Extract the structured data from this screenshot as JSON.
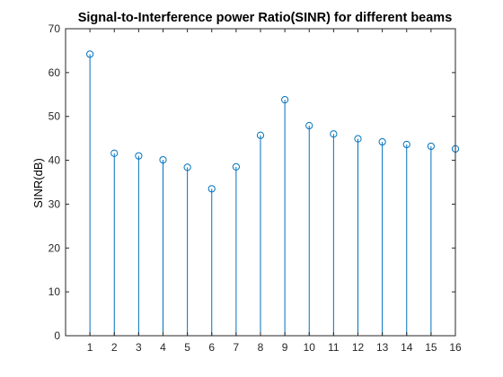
{
  "chart_data": {
    "type": "stem",
    "title": "Signal-to-Interference power Ratio(SINR) for different beams",
    "xlabel": "",
    "ylabel": "SINR(dB)",
    "x": [
      1,
      2,
      3,
      4,
      5,
      6,
      7,
      8,
      9,
      10,
      11,
      12,
      13,
      14,
      15,
      16
    ],
    "values": [
      64.2,
      41.6,
      41.0,
      40.1,
      38.4,
      33.5,
      38.5,
      45.7,
      53.8,
      47.9,
      46.0,
      44.9,
      44.2,
      43.6,
      43.2,
      42.6
    ],
    "xlim": [
      0,
      16
    ],
    "ylim": [
      0,
      70
    ],
    "xticks": [
      1,
      2,
      3,
      4,
      5,
      6,
      7,
      8,
      9,
      10,
      11,
      12,
      13,
      14,
      15,
      16
    ],
    "yticks": [
      0,
      10,
      20,
      30,
      40,
      50,
      60,
      70
    ],
    "marker": "circle",
    "grid": false,
    "box": true,
    "colors": {
      "series": "#0072bd",
      "axes": "#262626",
      "background": "#ffffff"
    }
  }
}
